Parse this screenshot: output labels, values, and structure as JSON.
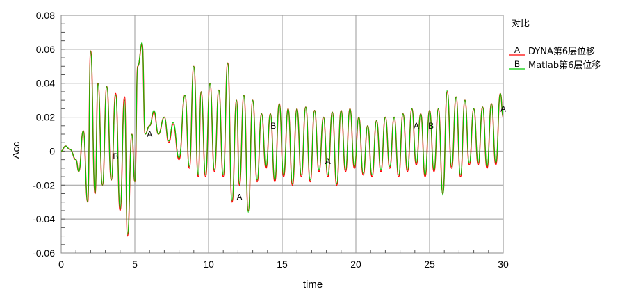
{
  "chart_data": {
    "type": "line",
    "xlabel": "time",
    "ylabel": "Acc",
    "xlim": [
      0,
      30
    ],
    "ylim": [
      -0.06,
      0.08
    ],
    "xticks": [
      0,
      5,
      10,
      15,
      20,
      25,
      30
    ],
    "yticks": [
      -0.06,
      -0.04,
      -0.02,
      0,
      0.02,
      0.04,
      0.06,
      0.08
    ],
    "xtick_labels": [
      "0",
      "5",
      "10",
      "15",
      "20",
      "25",
      "30"
    ],
    "ytick_labels": [
      "-0.06",
      "-0.04",
      "-0.02",
      "0",
      "0.02",
      "0.04",
      "0.06",
      "0.08"
    ],
    "grid": true,
    "legend": {
      "title": "对比",
      "placement": "right",
      "entries": [
        {
          "marker": "A",
          "label": "DYNA第6层位移",
          "color": "#ff0000"
        },
        {
          "marker": "B",
          "label": "Matlab第6层位移",
          "color": "#00cc00"
        }
      ]
    },
    "series": [
      {
        "name": "DYNA第6层位移",
        "marker": "A",
        "color": "#ff0000",
        "x": [
          0,
          0.3,
          0.6,
          1,
          1.2,
          1.5,
          1.8,
          2,
          2.3,
          2.5,
          2.8,
          3.1,
          3.4,
          3.7,
          4,
          4.3,
          4.5,
          4.8,
          5,
          5.2,
          5.5,
          5.7,
          6,
          6.3,
          6.6,
          7,
          7.3,
          7.6,
          8,
          8.4,
          8.7,
          9,
          9.3,
          9.5,
          9.8,
          10.1,
          10.4,
          10.7,
          11,
          11.3,
          11.6,
          11.9,
          12.1,
          12.4,
          12.7,
          13,
          13.3,
          13.6,
          13.9,
          14.2,
          14.5,
          14.8,
          15.1,
          15.4,
          15.7,
          16,
          16.3,
          16.6,
          16.9,
          17.2,
          17.5,
          17.8,
          18.1,
          18.4,
          18.7,
          19,
          19.3,
          19.6,
          19.9,
          20.2,
          20.5,
          20.8,
          21.1,
          21.4,
          21.7,
          22,
          22.3,
          22.6,
          22.9,
          23.2,
          23.5,
          23.8,
          24.1,
          24.4,
          24.7,
          25,
          25.3,
          25.6,
          25.9,
          26.2,
          26.5,
          26.8,
          27.1,
          27.4,
          27.7,
          28,
          28.3,
          28.6,
          28.9,
          29.2,
          29.5,
          29.8,
          30
        ],
        "y": [
          0,
          0.003,
          0.001,
          -0.005,
          -0.012,
          0.012,
          -0.03,
          0.059,
          -0.025,
          0.04,
          -0.02,
          0.038,
          -0.017,
          0.034,
          -0.035,
          0.032,
          -0.05,
          0.01,
          -0.018,
          0.05,
          0.063,
          0.01,
          0.015,
          0.023,
          0.01,
          0.02,
          0.005,
          0.016,
          -0.005,
          0.033,
          -0.01,
          0.05,
          -0.015,
          0.035,
          -0.015,
          0.04,
          -0.012,
          0.036,
          -0.015,
          0.052,
          -0.03,
          0.03,
          -0.02,
          0.033,
          -0.035,
          0.03,
          -0.018,
          0.022,
          -0.01,
          0.022,
          -0.018,
          0.028,
          -0.015,
          0.025,
          -0.02,
          0.025,
          -0.015,
          0.026,
          -0.018,
          0.024,
          -0.012,
          0.02,
          -0.015,
          0.023,
          -0.02,
          0.024,
          -0.012,
          0.025,
          -0.01,
          0.02,
          -0.014,
          0.015,
          -0.015,
          0.018,
          -0.012,
          0.02,
          -0.01,
          0.02,
          -0.015,
          0.022,
          -0.012,
          0.025,
          -0.008,
          0.022,
          -0.015,
          0.024,
          -0.012,
          0.025,
          -0.025,
          0.035,
          -0.01,
          0.032,
          -0.015,
          0.03,
          -0.008,
          0.025,
          -0.008,
          0.026,
          -0.01,
          0.028,
          -0.008,
          0.034,
          0.02
        ]
      },
      {
        "name": "Matlab第6层位移",
        "marker": "B",
        "color": "#00cc00",
        "x": [
          0,
          0.3,
          0.6,
          1,
          1.2,
          1.5,
          1.8,
          2,
          2.3,
          2.5,
          2.8,
          3.1,
          3.4,
          3.7,
          4,
          4.3,
          4.5,
          4.8,
          5,
          5.2,
          5.5,
          5.7,
          6,
          6.3,
          6.6,
          7,
          7.3,
          7.6,
          8,
          8.4,
          8.7,
          9,
          9.3,
          9.5,
          9.8,
          10.1,
          10.4,
          10.7,
          11,
          11.3,
          11.6,
          11.9,
          12.1,
          12.4,
          12.7,
          13,
          13.3,
          13.6,
          13.9,
          14.2,
          14.5,
          14.8,
          15.1,
          15.4,
          15.7,
          16,
          16.3,
          16.6,
          16.9,
          17.2,
          17.5,
          17.8,
          18.1,
          18.4,
          18.7,
          19,
          19.3,
          19.6,
          19.9,
          20.2,
          20.5,
          20.8,
          21.1,
          21.4,
          21.7,
          22,
          22.3,
          22.6,
          22.9,
          23.2,
          23.5,
          23.8,
          24.1,
          24.4,
          24.7,
          25,
          25.3,
          25.6,
          25.9,
          26.2,
          26.5,
          26.8,
          27.1,
          27.4,
          27.7,
          28,
          28.3,
          28.6,
          28.9,
          29.2,
          29.5,
          29.8,
          30
        ],
        "y": [
          0,
          0.003,
          0.001,
          -0.005,
          -0.012,
          0.012,
          -0.03,
          0.059,
          -0.025,
          0.04,
          -0.02,
          0.038,
          -0.017,
          0.033,
          -0.034,
          0.03,
          -0.049,
          0.01,
          -0.018,
          0.05,
          0.064,
          0.01,
          0.015,
          0.024,
          0.01,
          0.02,
          0.006,
          0.017,
          -0.004,
          0.033,
          -0.009,
          0.05,
          -0.014,
          0.035,
          -0.014,
          0.04,
          -0.011,
          0.036,
          -0.014,
          0.052,
          -0.029,
          0.03,
          -0.019,
          0.033,
          -0.036,
          0.03,
          -0.017,
          0.022,
          -0.009,
          0.022,
          -0.017,
          0.028,
          -0.014,
          0.025,
          -0.019,
          0.025,
          -0.014,
          0.026,
          -0.017,
          0.024,
          -0.011,
          0.02,
          -0.014,
          0.023,
          -0.019,
          0.024,
          -0.011,
          0.025,
          -0.009,
          0.02,
          -0.013,
          0.015,
          -0.014,
          0.018,
          -0.011,
          0.02,
          -0.009,
          0.02,
          -0.014,
          0.022,
          -0.011,
          0.025,
          -0.007,
          0.022,
          -0.014,
          0.024,
          -0.011,
          0.025,
          -0.026,
          0.036,
          -0.009,
          0.032,
          -0.014,
          0.03,
          -0.007,
          0.025,
          -0.007,
          0.026,
          -0.009,
          0.028,
          -0.007,
          0.034,
          0.02
        ]
      }
    ],
    "annotations": [
      {
        "text": "B",
        "x": 3.7,
        "y": -0.003
      },
      {
        "text": "A",
        "x": 6.0,
        "y": 0.01
      },
      {
        "text": "A",
        "x": 12.1,
        "y": -0.027
      },
      {
        "text": "B",
        "x": 14.4,
        "y": 0.015
      },
      {
        "text": "A",
        "x": 18.1,
        "y": -0.006
      },
      {
        "text": "A",
        "x": 24.1,
        "y": 0.015
      },
      {
        "text": "B",
        "x": 25.1,
        "y": 0.015
      },
      {
        "text": "A",
        "x": 30.0,
        "y": 0.025
      }
    ]
  }
}
